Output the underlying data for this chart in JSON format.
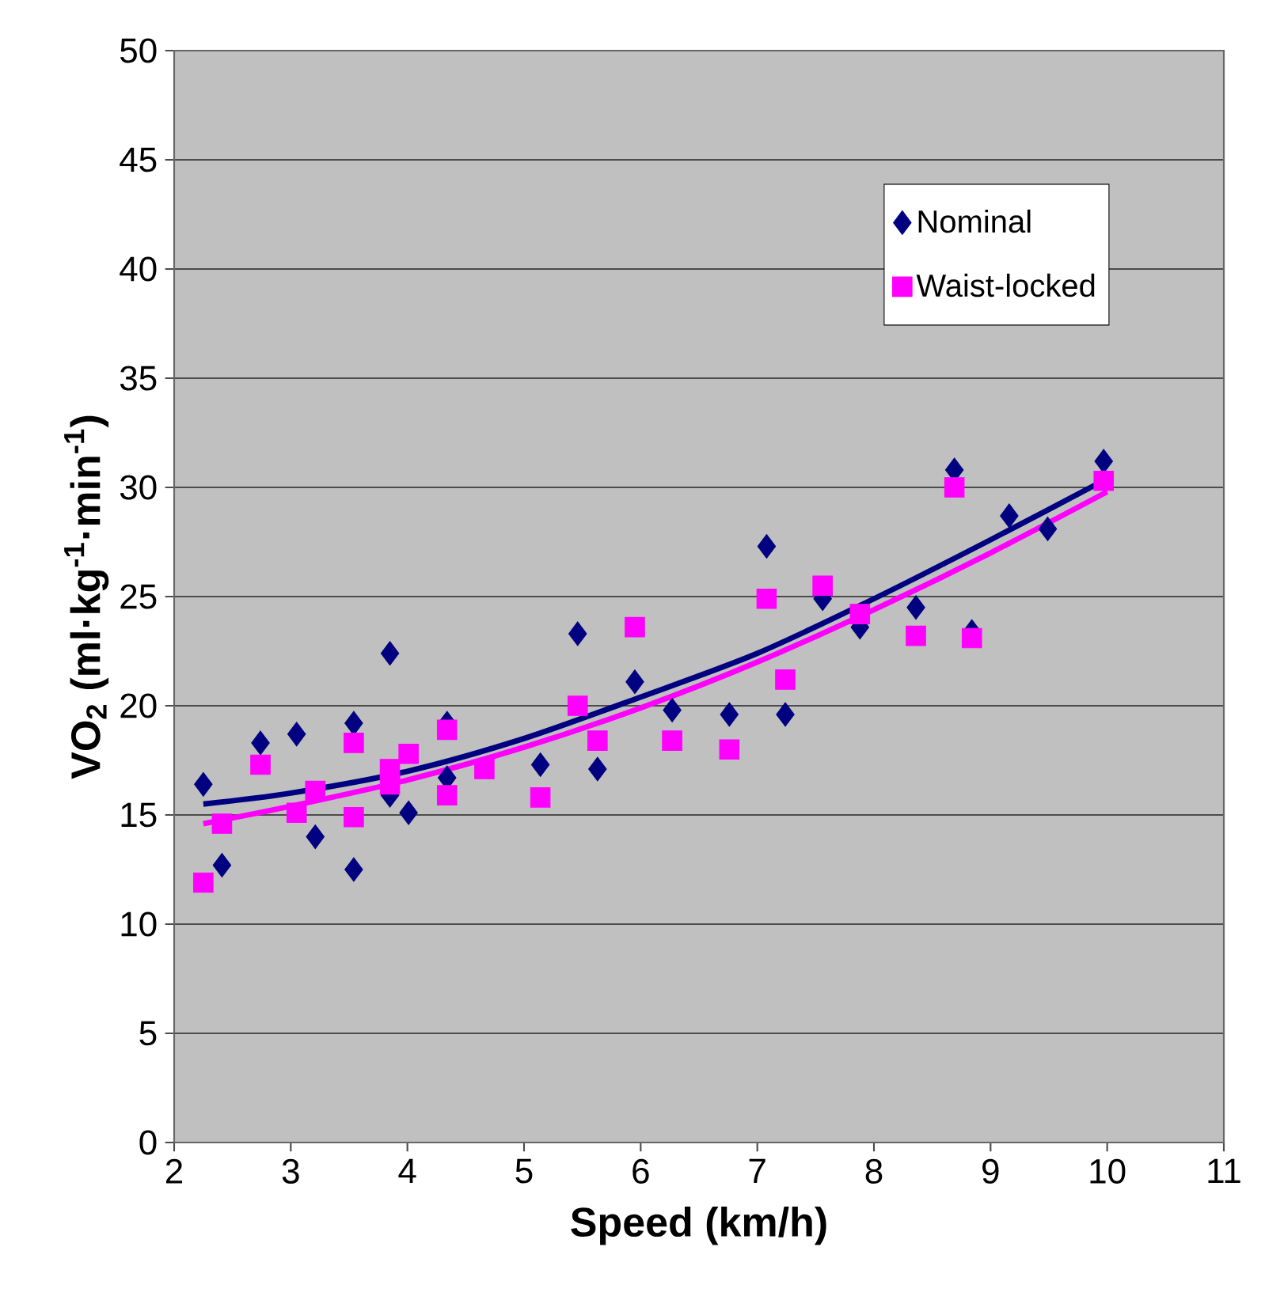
{
  "chart_data": {
    "type": "scatter",
    "xlabel": "Speed (km/h)",
    "ylabel": "VO$_{2}$ (ml·kg$^{-1}$·min$^{-1}$)",
    "xlim": [
      2,
      11
    ],
    "ylim": [
      0,
      50
    ],
    "xticks": [
      2,
      3,
      4,
      5,
      6,
      7,
      8,
      9,
      10,
      11
    ],
    "yticks": [
      0,
      5,
      10,
      15,
      20,
      25,
      30,
      35,
      40,
      45,
      50
    ],
    "grid": "y",
    "legend": "top right",
    "series": [
      {
        "name": "Nominal",
        "color": "#000080",
        "marker": "diamond",
        "x": [
          2.25,
          2.41,
          2.74,
          3.05,
          3.21,
          3.54,
          3.54,
          3.85,
          3.85,
          4.01,
          4.34,
          4.34,
          5.14,
          5.46,
          5.63,
          5.95,
          6.27,
          6.76,
          7.08,
          7.24,
          7.56,
          7.88,
          8.36,
          8.69,
          8.84,
          9.16,
          9.49,
          9.97
        ],
        "values": [
          16.4,
          12.7,
          18.3,
          18.7,
          14.0,
          19.2,
          12.5,
          22.4,
          15.9,
          15.1,
          19.2,
          16.7,
          17.3,
          23.3,
          17.1,
          21.1,
          19.8,
          19.6,
          27.3,
          19.6,
          24.9,
          23.6,
          24.5,
          30.8,
          23.4,
          28.7,
          28.1,
          31.2
        ]
      },
      {
        "name": "Waist-locked",
        "color": "#ff00ff",
        "marker": "square",
        "x": [
          2.25,
          2.41,
          2.74,
          3.05,
          3.21,
          3.54,
          3.54,
          3.85,
          3.85,
          4.01,
          4.34,
          4.34,
          4.66,
          5.14,
          5.46,
          5.63,
          5.95,
          6.27,
          6.76,
          7.08,
          7.24,
          7.56,
          7.88,
          8.36,
          8.69,
          8.84,
          9.97
        ],
        "values": [
          11.9,
          14.6,
          17.3,
          15.1,
          16.1,
          14.9,
          18.3,
          17.1,
          16.4,
          17.8,
          18.9,
          15.9,
          17.1,
          15.8,
          20.0,
          18.4,
          23.6,
          18.4,
          18.0,
          24.9,
          21.2,
          25.5,
          24.2,
          23.2,
          30.0,
          23.1,
          30.3
        ]
      },
      {
        "type": "line",
        "color": "#000080",
        "marker": "none",
        "x": [
          2.25,
          3,
          4,
          5,
          6,
          7,
          8,
          9,
          10
        ],
        "values": [
          15.5,
          16.0,
          17.0,
          18.5,
          20.4,
          22.4,
          24.9,
          27.6,
          30.4
        ]
      },
      {
        "type": "line",
        "color": "#ff00ff",
        "marker": "none",
        "x": [
          2.25,
          3,
          4,
          5,
          6,
          7,
          8,
          9,
          10
        ],
        "values": [
          14.6,
          15.4,
          16.6,
          18.1,
          19.9,
          22.0,
          24.4,
          27.0,
          29.8
        ]
      }
    ]
  }
}
